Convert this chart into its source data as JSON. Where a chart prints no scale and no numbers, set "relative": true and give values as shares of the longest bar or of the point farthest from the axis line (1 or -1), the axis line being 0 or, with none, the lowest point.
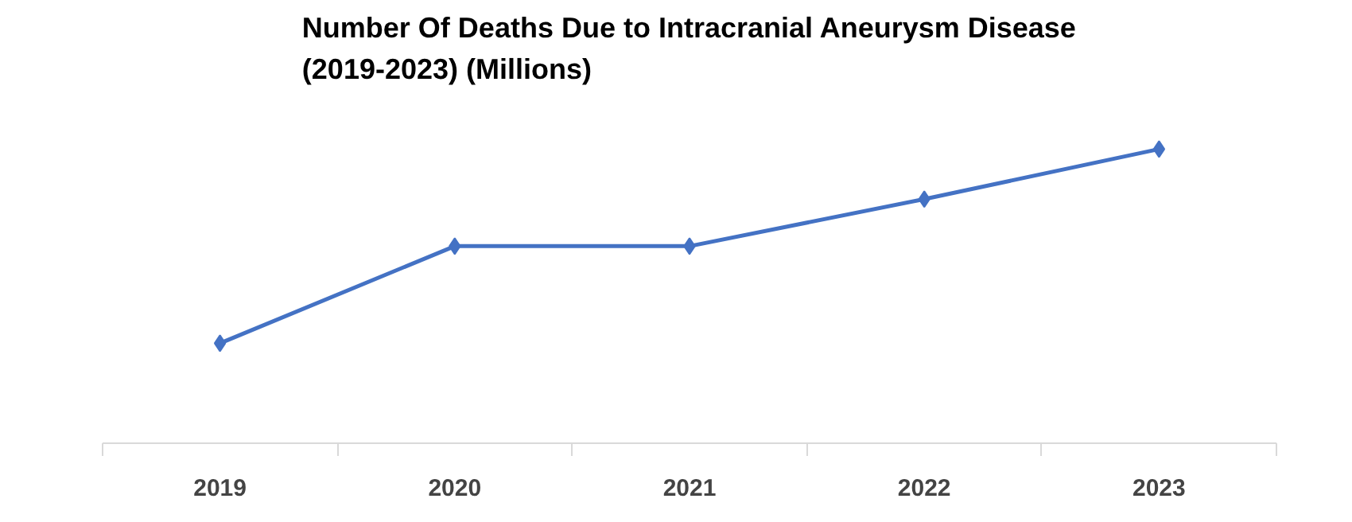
{
  "chart_data": {
    "type": "line",
    "title": "Number Of Deaths Due to Intracranial Aneurysm Disease (2019-2023) (Millions)",
    "categories": [
      "2019",
      "2020",
      "2021",
      "2022",
      "2023"
    ],
    "relative": true,
    "series": [
      {
        "color": "#4472c4",
        "values": [
          0.34,
          0.67,
          0.67,
          0.83,
          1
        ]
      }
    ],
    "marker": "diamond",
    "line_style": "solid",
    "grid": false
  }
}
